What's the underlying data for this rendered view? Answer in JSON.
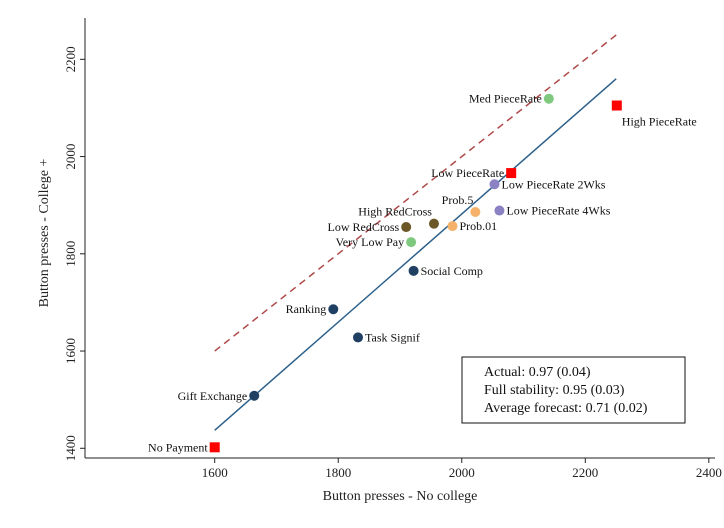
{
  "chart_data": {
    "type": "scatter",
    "xlabel": "Button presses - No college",
    "ylabel": "Button presses - College +",
    "xlim": [
      1390,
      2410
    ],
    "ylim": [
      1380,
      2285
    ],
    "xticks": [
      1600,
      1800,
      2000,
      2200,
      2400
    ],
    "yticks": [
      1400,
      1600,
      1800,
      2000,
      2200
    ],
    "grid": false,
    "colors": {
      "dark_blue": "#1f3f63",
      "red": "#ff0000",
      "light_green": "#7fc97f",
      "orange": "#f6b26b",
      "purple": "#8b82c4",
      "olive": "#6b5826",
      "fit_line": "#2c5f8a",
      "diagonal": "#b04a4a"
    },
    "points": [
      {
        "label": "No Payment",
        "x": 1600,
        "y": 1402,
        "marker": "square",
        "color": "#ff0000",
        "label_side": "left"
      },
      {
        "label": "Gift Exchange",
        "x": 1664,
        "y": 1508,
        "marker": "circle",
        "color": "#1f3f63",
        "label_side": "left"
      },
      {
        "label": "Task Signif",
        "x": 1832,
        "y": 1628,
        "marker": "circle",
        "color": "#1f3f63",
        "label_side": "right"
      },
      {
        "label": "Ranking",
        "x": 1792,
        "y": 1686,
        "marker": "circle",
        "color": "#1f3f63",
        "label_side": "left"
      },
      {
        "label": "Social Comp",
        "x": 1922,
        "y": 1765,
        "marker": "circle",
        "color": "#1f3f63",
        "label_side": "right"
      },
      {
        "label": "Very Low Pay",
        "x": 1918,
        "y": 1824,
        "marker": "circle",
        "color": "#7fc97f",
        "label_side": "left"
      },
      {
        "label": "Low RedCross",
        "x": 1910,
        "y": 1855,
        "marker": "circle",
        "color": "#6b5826",
        "label_side": "left"
      },
      {
        "label": "High RedCross",
        "x": 1955,
        "y": 1862,
        "marker": "circle",
        "color": "#6b5826",
        "label_side": "upleft"
      },
      {
        "label": "Prob.01",
        "x": 1985,
        "y": 1857,
        "marker": "circle",
        "color": "#f6b26b",
        "label_side": "right"
      },
      {
        "label": "Prob.5",
        "x": 2022,
        "y": 1886,
        "marker": "circle",
        "color": "#f6b26b",
        "label_side": "upleft"
      },
      {
        "label": "Low PieceRate 4Wks",
        "x": 2061,
        "y": 1889,
        "marker": "circle",
        "color": "#8b82c4",
        "label_side": "right"
      },
      {
        "label": "Low PieceRate 2Wks",
        "x": 2053,
        "y": 1943,
        "marker": "circle",
        "color": "#8b82c4",
        "label_side": "right"
      },
      {
        "label": "Low PieceRate",
        "x": 2080,
        "y": 1966,
        "marker": "square",
        "color": "#ff0000",
        "label_side": "left"
      },
      {
        "label": "Med PieceRate",
        "x": 2141,
        "y": 2119,
        "marker": "circle",
        "color": "#7fc97f",
        "label_side": "left"
      },
      {
        "label": "High PieceRate",
        "x": 2251,
        "y": 2105,
        "marker": "square",
        "color": "#ff0000",
        "label_side": "belowright"
      }
    ],
    "lines": [
      {
        "kind": "diagonal",
        "style": "dashed",
        "x": [
          1600,
          2250
        ],
        "y": [
          1600,
          2250
        ]
      },
      {
        "kind": "fit",
        "style": "solid",
        "x": [
          1600,
          2250
        ],
        "y": [
          1437,
          2160
        ]
      }
    ],
    "annotation_box": {
      "lines": [
        "Actual: 0.97 (0.04)",
        "Full stability: 0.95 (0.03)",
        "Average forecast: 0.71 (0.02)"
      ]
    }
  }
}
